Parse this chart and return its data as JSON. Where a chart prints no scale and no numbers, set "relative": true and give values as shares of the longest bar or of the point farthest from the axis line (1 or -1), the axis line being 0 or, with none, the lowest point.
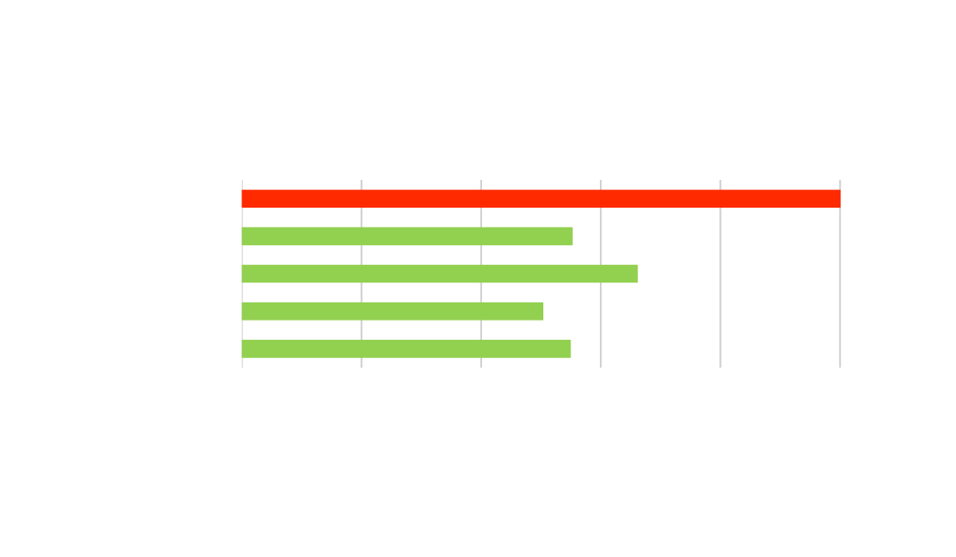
{
  "chart_data": {
    "type": "bar",
    "orientation": "horizontal",
    "relative": true,
    "categories": [
      null,
      null,
      null,
      null,
      null
    ],
    "values": [
      1,
      0.552,
      0.661,
      0.503,
      0.549
    ],
    "colors": [
      "#ff2a00",
      "#92d050",
      "#92d050",
      "#92d050",
      "#92d050"
    ],
    "grid": "x",
    "tick_labels": false,
    "legend": false
  }
}
